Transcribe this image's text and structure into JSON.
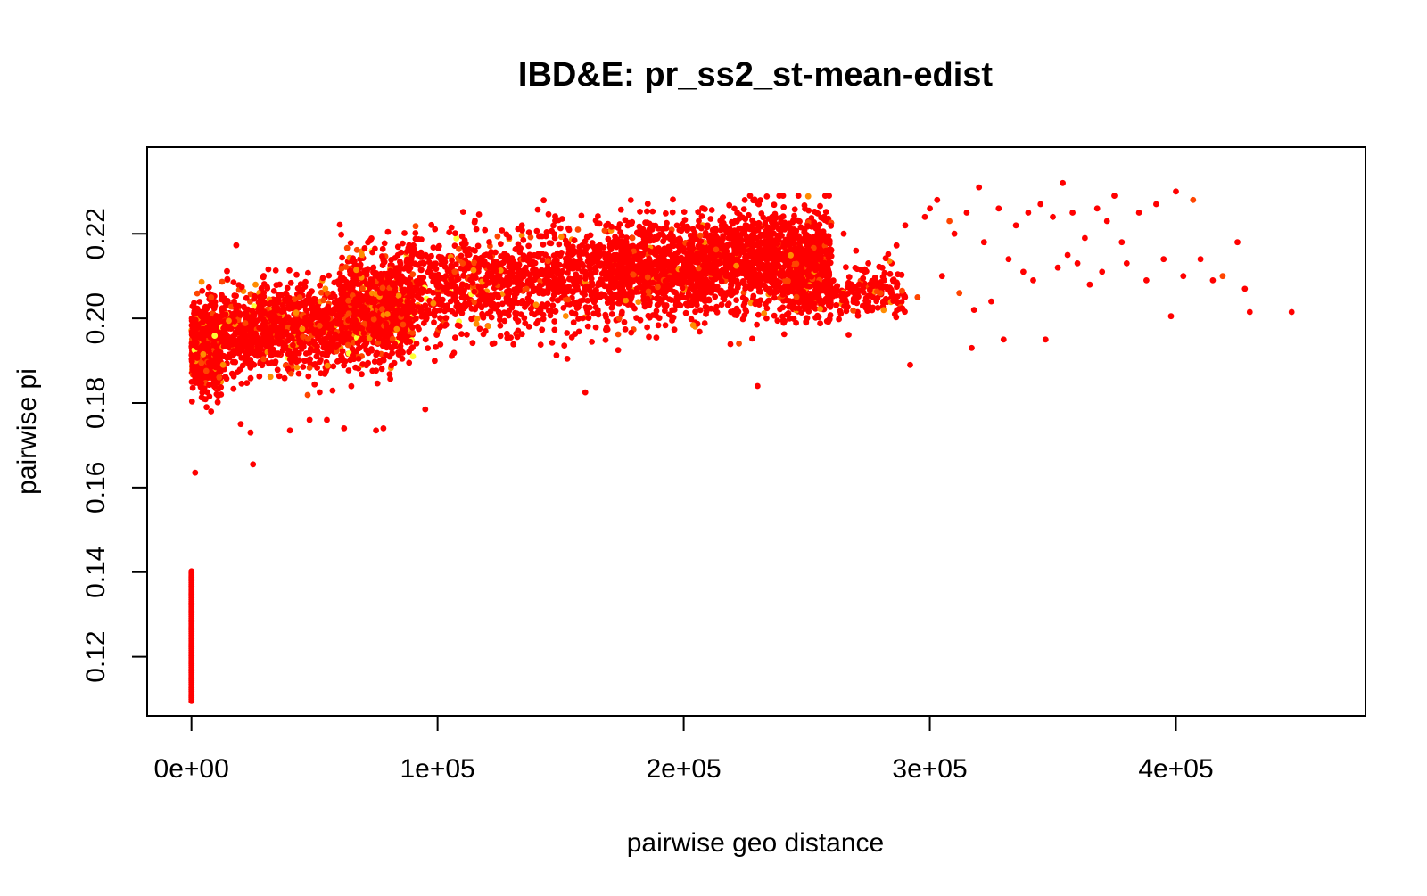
{
  "chart_data": {
    "type": "scatter",
    "title": "IBD&E: pr_ss2_st-mean-edist",
    "xlabel": "pairwise geo distance",
    "ylabel": "pairwise pi",
    "xlim": [
      -18000,
      477000
    ],
    "ylim": [
      0.106,
      0.2405
    ],
    "xticks": [
      0,
      100000,
      200000,
      300000,
      400000
    ],
    "xtick_labels": [
      "0e+00",
      "1e+05",
      "2e+05",
      "3e+05",
      "4e+05"
    ],
    "yticks": [
      0.12,
      0.14,
      0.16,
      0.18,
      0.2,
      0.22
    ],
    "ytick_labels": [
      "0.12",
      "0.14",
      "0.16",
      "0.18",
      "0.20",
      "0.22"
    ],
    "grid": false,
    "legend": "none",
    "colors": {
      "dominant": "#ff0000",
      "medium": "#ff4500",
      "orange": "#ff8c00",
      "yellow": "#ffff33"
    },
    "color_scale": "heat (red to yellow), mostly red",
    "point_density_clusters": [
      {
        "x_range": [
          0,
          12000
        ],
        "y_center": 0.193,
        "y_spread": 0.006,
        "n": 700
      },
      {
        "x_range": [
          12000,
          90000
        ],
        "y_center": 0.198,
        "y_spread": 0.007,
        "n": 1500
      },
      {
        "x_range": [
          60000,
          260000
        ],
        "y_center": 0.21,
        "y_spread": 0.008,
        "n": 2600
      },
      {
        "x_range": [
          170000,
          260000
        ],
        "y_center": 0.214,
        "y_spread": 0.007,
        "n": 900
      },
      {
        "x_range": [
          240000,
          290000
        ],
        "y_center": 0.206,
        "y_spread": 0.004,
        "n": 300
      }
    ],
    "sparse_points": [
      [
        265000,
        0.22
      ],
      [
        270000,
        0.216
      ],
      [
        275000,
        0.213
      ],
      [
        280000,
        0.206
      ],
      [
        285000,
        0.209
      ],
      [
        290000,
        0.222
      ],
      [
        292000,
        0.189
      ],
      [
        295000,
        0.205
      ],
      [
        298000,
        0.224
      ],
      [
        300000,
        0.226
      ],
      [
        303000,
        0.228
      ],
      [
        305000,
        0.21
      ],
      [
        308000,
        0.223
      ],
      [
        310000,
        0.22
      ],
      [
        312000,
        0.206
      ],
      [
        315000,
        0.225
      ],
      [
        317000,
        0.193
      ],
      [
        318000,
        0.202
      ],
      [
        320000,
        0.231
      ],
      [
        322000,
        0.218
      ],
      [
        325000,
        0.204
      ],
      [
        328000,
        0.226
      ],
      [
        330000,
        0.195
      ],
      [
        332000,
        0.214
      ],
      [
        335000,
        0.222
      ],
      [
        338000,
        0.211
      ],
      [
        340000,
        0.225
      ],
      [
        342000,
        0.209
      ],
      [
        345000,
        0.227
      ],
      [
        347000,
        0.195
      ],
      [
        350000,
        0.224
      ],
      [
        352000,
        0.212
      ],
      [
        354000,
        0.232
      ],
      [
        356000,
        0.215
      ],
      [
        358000,
        0.225
      ],
      [
        360000,
        0.213
      ],
      [
        363000,
        0.219
      ],
      [
        365000,
        0.208
      ],
      [
        368000,
        0.226
      ],
      [
        370000,
        0.211
      ],
      [
        372000,
        0.223
      ],
      [
        375000,
        0.229
      ],
      [
        378000,
        0.218
      ],
      [
        380000,
        0.213
      ],
      [
        385000,
        0.225
      ],
      [
        388000,
        0.209
      ],
      [
        392000,
        0.227
      ],
      [
        395000,
        0.214
      ],
      [
        398000,
        0.2005
      ],
      [
        400000,
        0.23
      ],
      [
        403000,
        0.21
      ],
      [
        407000,
        0.228
      ],
      [
        410000,
        0.214
      ],
      [
        415000,
        0.209
      ],
      [
        419000,
        0.21
      ],
      [
        425000,
        0.218
      ],
      [
        428000,
        0.207
      ],
      [
        430000,
        0.2015
      ],
      [
        447000,
        0.2015
      ]
    ],
    "outlier_points": [
      [
        1500,
        0.1635
      ],
      [
        8000,
        0.178
      ],
      [
        12000,
        0.182
      ],
      [
        20000,
        0.175
      ],
      [
        24000,
        0.173
      ],
      [
        25000,
        0.1655
      ],
      [
        40000,
        0.1735
      ],
      [
        48000,
        0.176
      ],
      [
        55000,
        0.176
      ],
      [
        62000,
        0.174
      ],
      [
        75000,
        0.1735
      ],
      [
        78000,
        0.174
      ],
      [
        95000,
        0.1785
      ],
      [
        160000,
        0.1825
      ],
      [
        230000,
        0.184
      ]
    ],
    "vertical_strip": {
      "x": 0,
      "y_min": 0.1095,
      "y_max": 0.1402,
      "n": 70
    }
  }
}
